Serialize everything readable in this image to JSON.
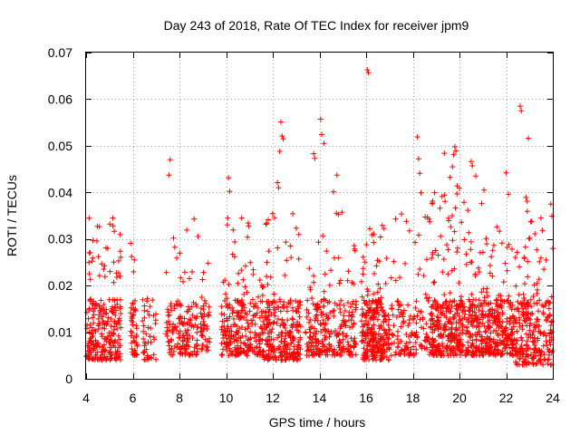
{
  "chart_data": {
    "type": "scatter",
    "title": "Day 243 of 2018, Rate Of TEC Index for receiver jpm9",
    "xlabel": "GPS time / hours",
    "ylabel": "ROTI / TECUs",
    "xlim": [
      4,
      24
    ],
    "ylim": [
      0,
      0.07
    ],
    "xticks": [
      4,
      6,
      8,
      10,
      12,
      14,
      16,
      18,
      20,
      22,
      24
    ],
    "xtick_labels": [
      "4",
      "6",
      "8",
      "10",
      "12",
      "14",
      "16",
      "18",
      "20",
      "22",
      "24"
    ],
    "yticks": [
      0,
      0.01,
      0.02,
      0.03,
      0.04,
      0.05,
      0.06,
      0.07
    ],
    "ytick_labels": [
      "0",
      "0.01",
      "0.02",
      "0.03",
      "0.04",
      "0.05",
      "0.06",
      "0.07"
    ],
    "grid": true,
    "marker": "plus",
    "color": "#ff0000",
    "point_count_estimate": 2600,
    "outliers": [
      {
        "x": 16.05,
        "y": 0.0663
      },
      {
        "x": 16.1,
        "y": 0.0657
      },
      {
        "x": 22.6,
        "y": 0.0585
      },
      {
        "x": 22.65,
        "y": 0.0575
      },
      {
        "x": 12.35,
        "y": 0.0551
      },
      {
        "x": 14.05,
        "y": 0.0557
      },
      {
        "x": 14.1,
        "y": 0.0524
      },
      {
        "x": 12.4,
        "y": 0.0521
      },
      {
        "x": 12.45,
        "y": 0.0515
      },
      {
        "x": 18.2,
        "y": 0.0519
      },
      {
        "x": 22.95,
        "y": 0.0516
      },
      {
        "x": 14.2,
        "y": 0.0505
      },
      {
        "x": 19.8,
        "y": 0.0498
      },
      {
        "x": 19.85,
        "y": 0.0489
      },
      {
        "x": 19.75,
        "y": 0.0481
      },
      {
        "x": 12.3,
        "y": 0.0488
      },
      {
        "x": 19.35,
        "y": 0.0484
      },
      {
        "x": 13.75,
        "y": 0.0483
      },
      {
        "x": 13.8,
        "y": 0.0473
      },
      {
        "x": 18.25,
        "y": 0.0472
      },
      {
        "x": 7.6,
        "y": 0.047
      },
      {
        "x": 20.5,
        "y": 0.0466
      },
      {
        "x": 20.55,
        "y": 0.0457
      },
      {
        "x": 19.7,
        "y": 0.0455
      },
      {
        "x": 22.0,
        "y": 0.0442
      },
      {
        "x": 14.75,
        "y": 0.0437
      },
      {
        "x": 18.3,
        "y": 0.0441
      },
      {
        "x": 7.55,
        "y": 0.0437
      },
      {
        "x": 20.7,
        "y": 0.0435
      },
      {
        "x": 19.6,
        "y": 0.0432
      },
      {
        "x": 10.1,
        "y": 0.0431
      },
      {
        "x": 10.15,
        "y": 0.0402
      },
      {
        "x": 12.2,
        "y": 0.0421
      },
      {
        "x": 12.25,
        "y": 0.041
      },
      {
        "x": 22.1,
        "y": 0.0396
      },
      {
        "x": 18.35,
        "y": 0.0399
      },
      {
        "x": 22.85,
        "y": 0.0389
      },
      {
        "x": 22.9,
        "y": 0.0381
      },
      {
        "x": 14.6,
        "y": 0.0401
      },
      {
        "x": 21.05,
        "y": 0.0405
      },
      {
        "x": 20.0,
        "y": 0.0409
      },
      {
        "x": 19.9,
        "y": 0.0414
      }
    ],
    "clusters": [
      {
        "x_range": [
          4.0,
          5.5
        ],
        "y_range": [
          0.004,
          0.035
        ],
        "density": "high",
        "peak_y": 0.0345
      },
      {
        "x_range": [
          5.9,
          6.2
        ],
        "y_range": [
          0.005,
          0.032
        ],
        "density": "low",
        "peak_y": 0.032
      },
      {
        "x_range": [
          6.4,
          7.0
        ],
        "y_range": [
          0.004,
          0.03
        ],
        "density": "low",
        "peak_y": 0.029
      },
      {
        "x_range": [
          7.4,
          8.8
        ],
        "y_range": [
          0.005,
          0.036
        ],
        "density": "medium",
        "peak_y": 0.0355
      },
      {
        "x_range": [
          8.9,
          9.3
        ],
        "y_range": [
          0.006,
          0.025
        ],
        "density": "low",
        "peak_y": 0.025
      },
      {
        "x_range": [
          9.8,
          11.6
        ],
        "y_range": [
          0.005,
          0.035
        ],
        "density": "high",
        "peak_y": 0.0345
      },
      {
        "x_range": [
          11.6,
          13.2
        ],
        "y_range": [
          0.004,
          0.038
        ],
        "density": "high",
        "peak_y": 0.038
      },
      {
        "x_range": [
          13.4,
          15.6
        ],
        "y_range": [
          0.005,
          0.036
        ],
        "density": "high",
        "peak_y": 0.036
      },
      {
        "x_range": [
          15.8,
          17.0
        ],
        "y_range": [
          0.004,
          0.033
        ],
        "density": "high",
        "peak_y": 0.033
      },
      {
        "x_range": [
          17.0,
          18.8
        ],
        "y_range": [
          0.005,
          0.036
        ],
        "density": "medium",
        "peak_y": 0.036
      },
      {
        "x_range": [
          18.8,
          21.0
        ],
        "y_range": [
          0.005,
          0.04
        ],
        "density": "very high",
        "peak_y": 0.04
      },
      {
        "x_range": [
          21.0,
          22.4
        ],
        "y_range": [
          0.005,
          0.036
        ],
        "density": "high",
        "peak_y": 0.036
      },
      {
        "x_range": [
          22.4,
          24.0
        ],
        "y_range": [
          0.003,
          0.038
        ],
        "density": "high",
        "peak_y": 0.038
      }
    ]
  }
}
